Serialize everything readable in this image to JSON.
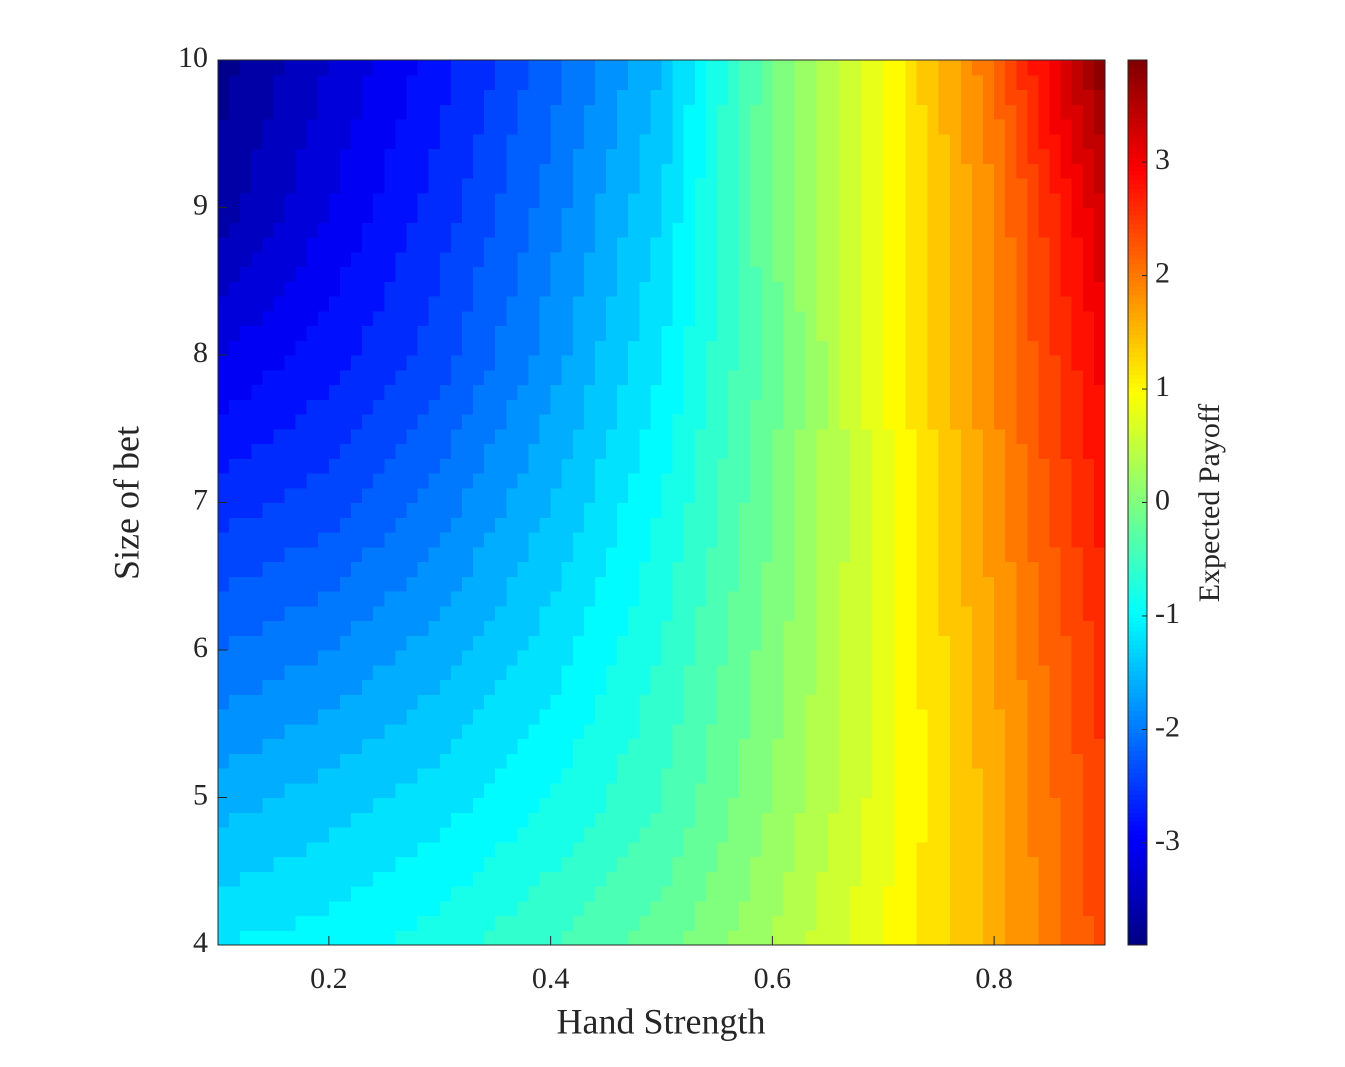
{
  "chart_data": {
    "type": "contour",
    "xlabel": "Hand Strength",
    "ylabel": "Size of bet",
    "colorbar_label": "Expected Payoff",
    "x": [
      0.1,
      0.2,
      0.3,
      0.4,
      0.5,
      0.6,
      0.7,
      0.8,
      0.9
    ],
    "y": [
      4,
      5,
      6,
      7,
      8,
      9,
      10
    ],
    "z": [
      [
        -1.1,
        -1.0,
        -0.8,
        -0.5,
        -0.2,
        0.3,
        0.9,
        1.6,
        2.4
      ],
      [
        -1.6,
        -1.4,
        -1.2,
        -0.9,
        -0.5,
        0.1,
        0.8,
        1.6,
        2.5
      ],
      [
        -2.1,
        -1.9,
        -1.6,
        -1.2,
        -0.7,
        0.0,
        0.8,
        1.7,
        2.6
      ],
      [
        -2.6,
        -2.4,
        -2.0,
        -1.5,
        -0.9,
        -0.1,
        0.8,
        1.8,
        2.8
      ],
      [
        -3.1,
        -2.8,
        -2.4,
        -1.8,
        -1.1,
        -0.2,
        0.9,
        1.9,
        3.0
      ],
      [
        -3.6,
        -3.1,
        -2.6,
        -2.0,
        -1.3,
        -0.1,
        0.9,
        1.9,
        3.3
      ],
      [
        -3.8,
        -3.3,
        -2.8,
        -2.2,
        -1.5,
        -0.1,
        0.9,
        2.1,
        3.9
      ]
    ],
    "xlim": [
      0.1,
      0.9
    ],
    "xticks": [
      0.2,
      0.4,
      0.6,
      0.8
    ],
    "ylim": [
      4,
      10
    ],
    "yticks": [
      4,
      5,
      6,
      7,
      8,
      9,
      10
    ],
    "clim": [
      -3.9,
      3.9
    ],
    "cticks": [
      -3,
      -2,
      -1,
      0,
      1,
      2,
      3
    ],
    "colormap": "jet",
    "level_step": 0.2
  }
}
